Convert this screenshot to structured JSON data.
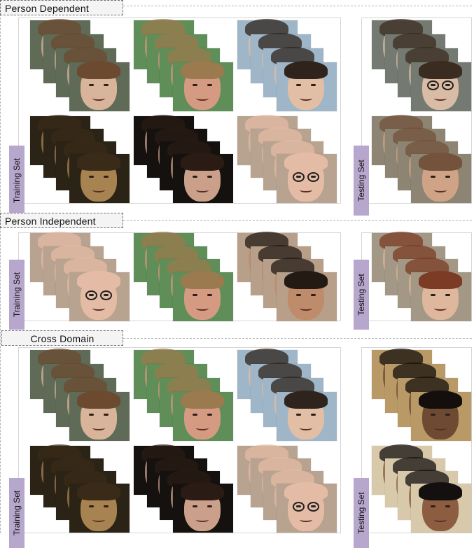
{
  "sections": [
    {
      "title": "Person Dependent",
      "train_label": "Training Set",
      "test_label": "Testing Set"
    },
    {
      "title": "Person Independent",
      "train_label": "Training Set",
      "test_label": "Testing Set"
    },
    {
      "title": "Cross Domain",
      "train_label": "Training Set",
      "test_label": "Testing Set"
    }
  ],
  "subjects": {
    "woman-long-hair": {
      "bg": "#5f6b57",
      "skin": "#d8b49b",
      "hair": "#6b4a30",
      "glasses": false
    },
    "young-man-blond": {
      "bg": "#5f8e58",
      "skin": "#d59a82",
      "hair": "#9a7a4e",
      "glasses": false
    },
    "young-man-dark": {
      "bg": "#9fb6c8",
      "skin": "#e2bea5",
      "hair": "#2e241d",
      "glasses": false
    },
    "man-glasses-dark": {
      "bg": "#747a72",
      "skin": "#d9bca5",
      "hair": "#3b2c21",
      "glasses": true
    },
    "boy-dark-scene": {
      "bg": "#2b2416",
      "skin": "#a88352",
      "hair": "#3a2a18",
      "glasses": false
    },
    "woman-dark-hair": {
      "bg": "#15110e",
      "skin": "#caa08b",
      "hair": "#2a1b15",
      "glasses": false
    },
    "bald-man-glasses": {
      "bg": "#b8a390",
      "skin": "#e4bca6",
      "hair": "#e4bca6",
      "glasses": true
    },
    "woman-curly": {
      "bg": "#8e8473",
      "skin": "#cfa486",
      "hair": "#73533b",
      "glasses": false
    },
    "man-smiling": {
      "bg": "#b79f8a",
      "skin": "#bf8c6b",
      "hair": "#231a14",
      "glasses": false
    },
    "woman-red-hair": {
      "bg": "#a39886",
      "skin": "#dfb79c",
      "hair": "#7c3b24",
      "glasses": false
    },
    "man-dark-skin": {
      "bg": "#b99a67",
      "skin": "#6f4a33",
      "hair": "#140f0c",
      "glasses": false
    },
    "woman-dark-skin": {
      "bg": "#d7c9a9",
      "skin": "#8c5d41",
      "hair": "#151010",
      "glasses": false
    }
  }
}
